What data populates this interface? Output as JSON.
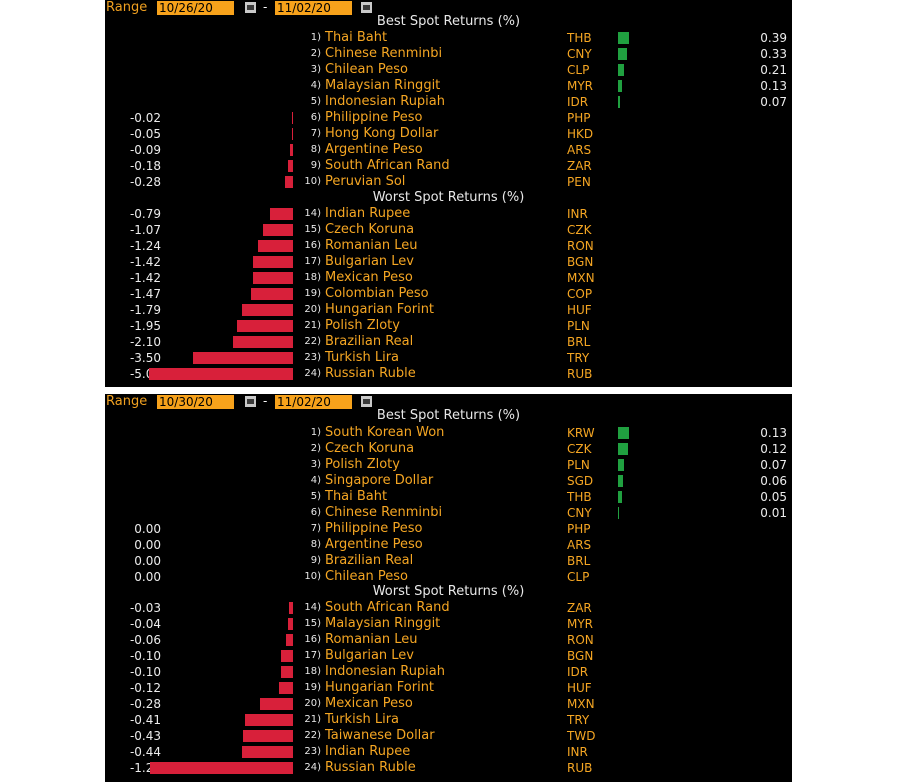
{
  "panels": [
    {
      "range_label": "Range",
      "date_from": "10/26/20",
      "date_to": "11/02/20",
      "separator": "-",
      "best_heading": "Best Spot Returns (%)",
      "worst_heading": "Worst Spot Returns (%)",
      "best": [
        {
          "rank": "1)",
          "name": "Thai Baht",
          "code": "THB",
          "value": "0.39",
          "v": 0.39
        },
        {
          "rank": "2)",
          "name": "Chinese Renminbi",
          "code": "CNY",
          "value": "0.33",
          "v": 0.33
        },
        {
          "rank": "3)",
          "name": "Chilean Peso",
          "code": "CLP",
          "value": "0.21",
          "v": 0.21
        },
        {
          "rank": "4)",
          "name": "Malaysian Ringgit",
          "code": "MYR",
          "value": "0.13",
          "v": 0.13
        },
        {
          "rank": "5)",
          "name": "Indonesian Rupiah",
          "code": "IDR",
          "value": "0.07",
          "v": 0.07
        },
        {
          "rank": "6)",
          "name": "Philippine Peso",
          "code": "PHP",
          "value": "-0.02",
          "v": -0.02
        },
        {
          "rank": "7)",
          "name": "Hong Kong Dollar",
          "code": "HKD",
          "value": "-0.05",
          "v": -0.05
        },
        {
          "rank": "8)",
          "name": "Argentine Peso",
          "code": "ARS",
          "value": "-0.09",
          "v": -0.09
        },
        {
          "rank": "9)",
          "name": "South African Rand",
          "code": "ZAR",
          "value": "-0.18",
          "v": -0.18
        },
        {
          "rank": "10)",
          "name": "Peruvian Sol",
          "code": "PEN",
          "value": "-0.28",
          "v": -0.28
        }
      ],
      "worst": [
        {
          "rank": "14)",
          "name": "Indian Rupee",
          "code": "INR",
          "value": "-0.79",
          "v": -0.79
        },
        {
          "rank": "15)",
          "name": "Czech Koruna",
          "code": "CZK",
          "value": "-1.07",
          "v": -1.07
        },
        {
          "rank": "16)",
          "name": "Romanian Leu",
          "code": "RON",
          "value": "-1.24",
          "v": -1.24
        },
        {
          "rank": "17)",
          "name": "Bulgarian Lev",
          "code": "BGN",
          "value": "-1.42",
          "v": -1.42
        },
        {
          "rank": "18)",
          "name": "Mexican Peso",
          "code": "MXN",
          "value": "-1.42",
          "v": -1.42
        },
        {
          "rank": "19)",
          "name": "Colombian Peso",
          "code": "COP",
          "value": "-1.47",
          "v": -1.47
        },
        {
          "rank": "20)",
          "name": "Hungarian Forint",
          "code": "HUF",
          "value": "-1.79",
          "v": -1.79
        },
        {
          "rank": "21)",
          "name": "Polish Zloty",
          "code": "PLN",
          "value": "-1.95",
          "v": -1.95
        },
        {
          "rank": "22)",
          "name": "Brazilian Real",
          "code": "BRL",
          "value": "-2.10",
          "v": -2.1
        },
        {
          "rank": "23)",
          "name": "Turkish Lira",
          "code": "TRY",
          "value": "-3.50",
          "v": -3.5
        },
        {
          "rank": "24)",
          "name": "Russian Ruble",
          "code": "RUB",
          "value": "-5.06",
          "v": -5.06
        }
      ]
    },
    {
      "range_label": "Range",
      "date_from": "10/30/20",
      "date_to": "11/02/20",
      "separator": "-",
      "best_heading": "Best Spot Returns (%)",
      "worst_heading": "Worst Spot Returns (%)",
      "best": [
        {
          "rank": "1)",
          "name": "South Korean Won",
          "code": "KRW",
          "value": "0.13",
          "v": 0.13
        },
        {
          "rank": "2)",
          "name": "Czech Koruna",
          "code": "CZK",
          "value": "0.12",
          "v": 0.12
        },
        {
          "rank": "3)",
          "name": "Polish Zloty",
          "code": "PLN",
          "value": "0.07",
          "v": 0.07
        },
        {
          "rank": "4)",
          "name": "Singapore Dollar",
          "code": "SGD",
          "value": "0.06",
          "v": 0.06
        },
        {
          "rank": "5)",
          "name": "Thai Baht",
          "code": "THB",
          "value": "0.05",
          "v": 0.05
        },
        {
          "rank": "6)",
          "name": "Chinese Renminbi",
          "code": "CNY",
          "value": "0.01",
          "v": 0.01
        },
        {
          "rank": "7)",
          "name": "Philippine Peso",
          "code": "PHP",
          "value": "0.00",
          "v": 0
        },
        {
          "rank": "8)",
          "name": "Argentine Peso",
          "code": "ARS",
          "value": "0.00",
          "v": 0
        },
        {
          "rank": "9)",
          "name": "Brazilian Real",
          "code": "BRL",
          "value": "0.00",
          "v": 0
        },
        {
          "rank": "10)",
          "name": "Chilean Peso",
          "code": "CLP",
          "value": "0.00",
          "v": 0
        }
      ],
      "worst": [
        {
          "rank": "14)",
          "name": "South African Rand",
          "code": "ZAR",
          "value": "-0.03",
          "v": -0.03
        },
        {
          "rank": "15)",
          "name": "Malaysian Ringgit",
          "code": "MYR",
          "value": "-0.04",
          "v": -0.04
        },
        {
          "rank": "16)",
          "name": "Romanian Leu",
          "code": "RON",
          "value": "-0.06",
          "v": -0.06
        },
        {
          "rank": "17)",
          "name": "Bulgarian Lev",
          "code": "BGN",
          "value": "-0.10",
          "v": -0.1
        },
        {
          "rank": "18)",
          "name": "Indonesian Rupiah",
          "code": "IDR",
          "value": "-0.10",
          "v": -0.1
        },
        {
          "rank": "19)",
          "name": "Hungarian Forint",
          "code": "HUF",
          "value": "-0.12",
          "v": -0.12
        },
        {
          "rank": "20)",
          "name": "Mexican Peso",
          "code": "MXN",
          "value": "-0.28",
          "v": -0.28
        },
        {
          "rank": "21)",
          "name": "Turkish Lira",
          "code": "TRY",
          "value": "-0.41",
          "v": -0.41
        },
        {
          "rank": "22)",
          "name": "Taiwanese Dollar",
          "code": "TWD",
          "value": "-0.43",
          "v": -0.43
        },
        {
          "rank": "23)",
          "name": "Indian Rupee",
          "code": "INR",
          "value": "-0.44",
          "v": -0.44
        },
        {
          "rank": "24)",
          "name": "Russian Ruble",
          "code": "RUB",
          "value": "-1.22",
          "v": -1.22
        }
      ]
    }
  ],
  "colors": {
    "positive": "#20a040",
    "negative": "#d8203a",
    "accent": "#f5a623"
  }
}
